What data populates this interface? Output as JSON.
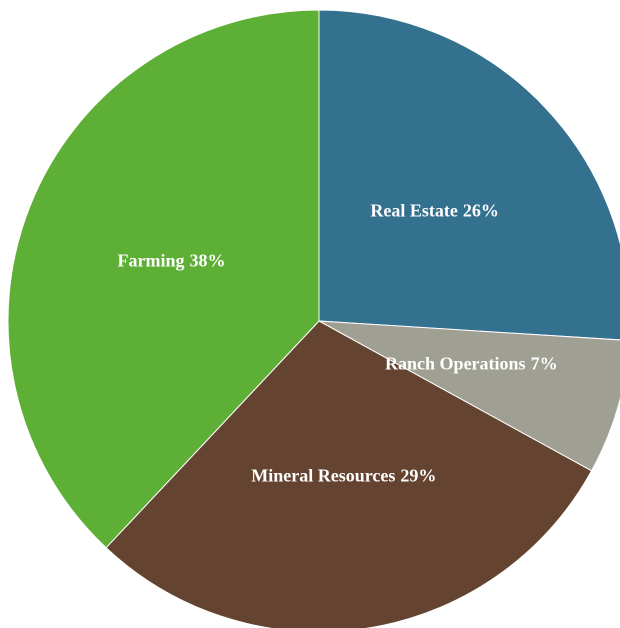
{
  "chart_data": {
    "type": "pie",
    "categories": [
      "Real Estate",
      "Ranch Operations",
      "Mineral Resources",
      "Farming"
    ],
    "values": [
      26,
      7,
      29,
      38
    ],
    "value_labels": [
      "26%",
      "7%",
      "29%",
      "38%"
    ],
    "colors": [
      "#33718f",
      "#a09f94",
      "#644431",
      "#5eaf35"
    ]
  }
}
